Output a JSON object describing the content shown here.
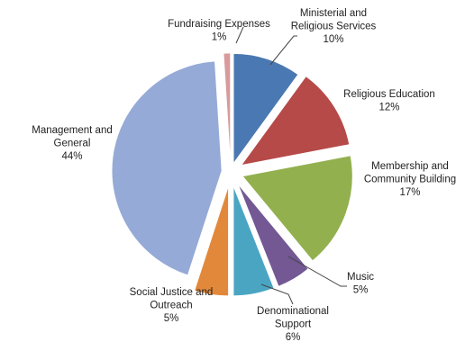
{
  "chart_data": {
    "type": "pie",
    "exploded": true,
    "start_angle_deg": 0,
    "direction": "clockwise",
    "slices": [
      {
        "label_lines": [
          "Ministerial and",
          "Religious Services"
        ],
        "pct_label": "10%",
        "value": 10,
        "color": "#4a78b2"
      },
      {
        "label_lines": [
          "Religious Education"
        ],
        "pct_label": "12%",
        "value": 12,
        "color": "#b54a48"
      },
      {
        "label_lines": [
          "Membership and",
          "Community Building"
        ],
        "pct_label": "17%",
        "value": 17,
        "color": "#93b04f"
      },
      {
        "label_lines": [
          "Music"
        ],
        "pct_label": "5%",
        "value": 5,
        "color": "#735894"
      },
      {
        "label_lines": [
          "Denominational",
          "Support"
        ],
        "pct_label": "6%",
        "value": 6,
        "color": "#4aa5c3"
      },
      {
        "label_lines": [
          "Social Justice and",
          "Outreach"
        ],
        "pct_label": "5%",
        "value": 5,
        "color": "#e2883a"
      },
      {
        "label_lines": [
          "Management and",
          "General"
        ],
        "pct_label": "44%",
        "value": 44,
        "color": "#95aad6"
      },
      {
        "label_lines": [
          "Fundraising Expenses"
        ],
        "pct_label": "1%",
        "value": 1,
        "color": "#d89a9a"
      }
    ]
  }
}
